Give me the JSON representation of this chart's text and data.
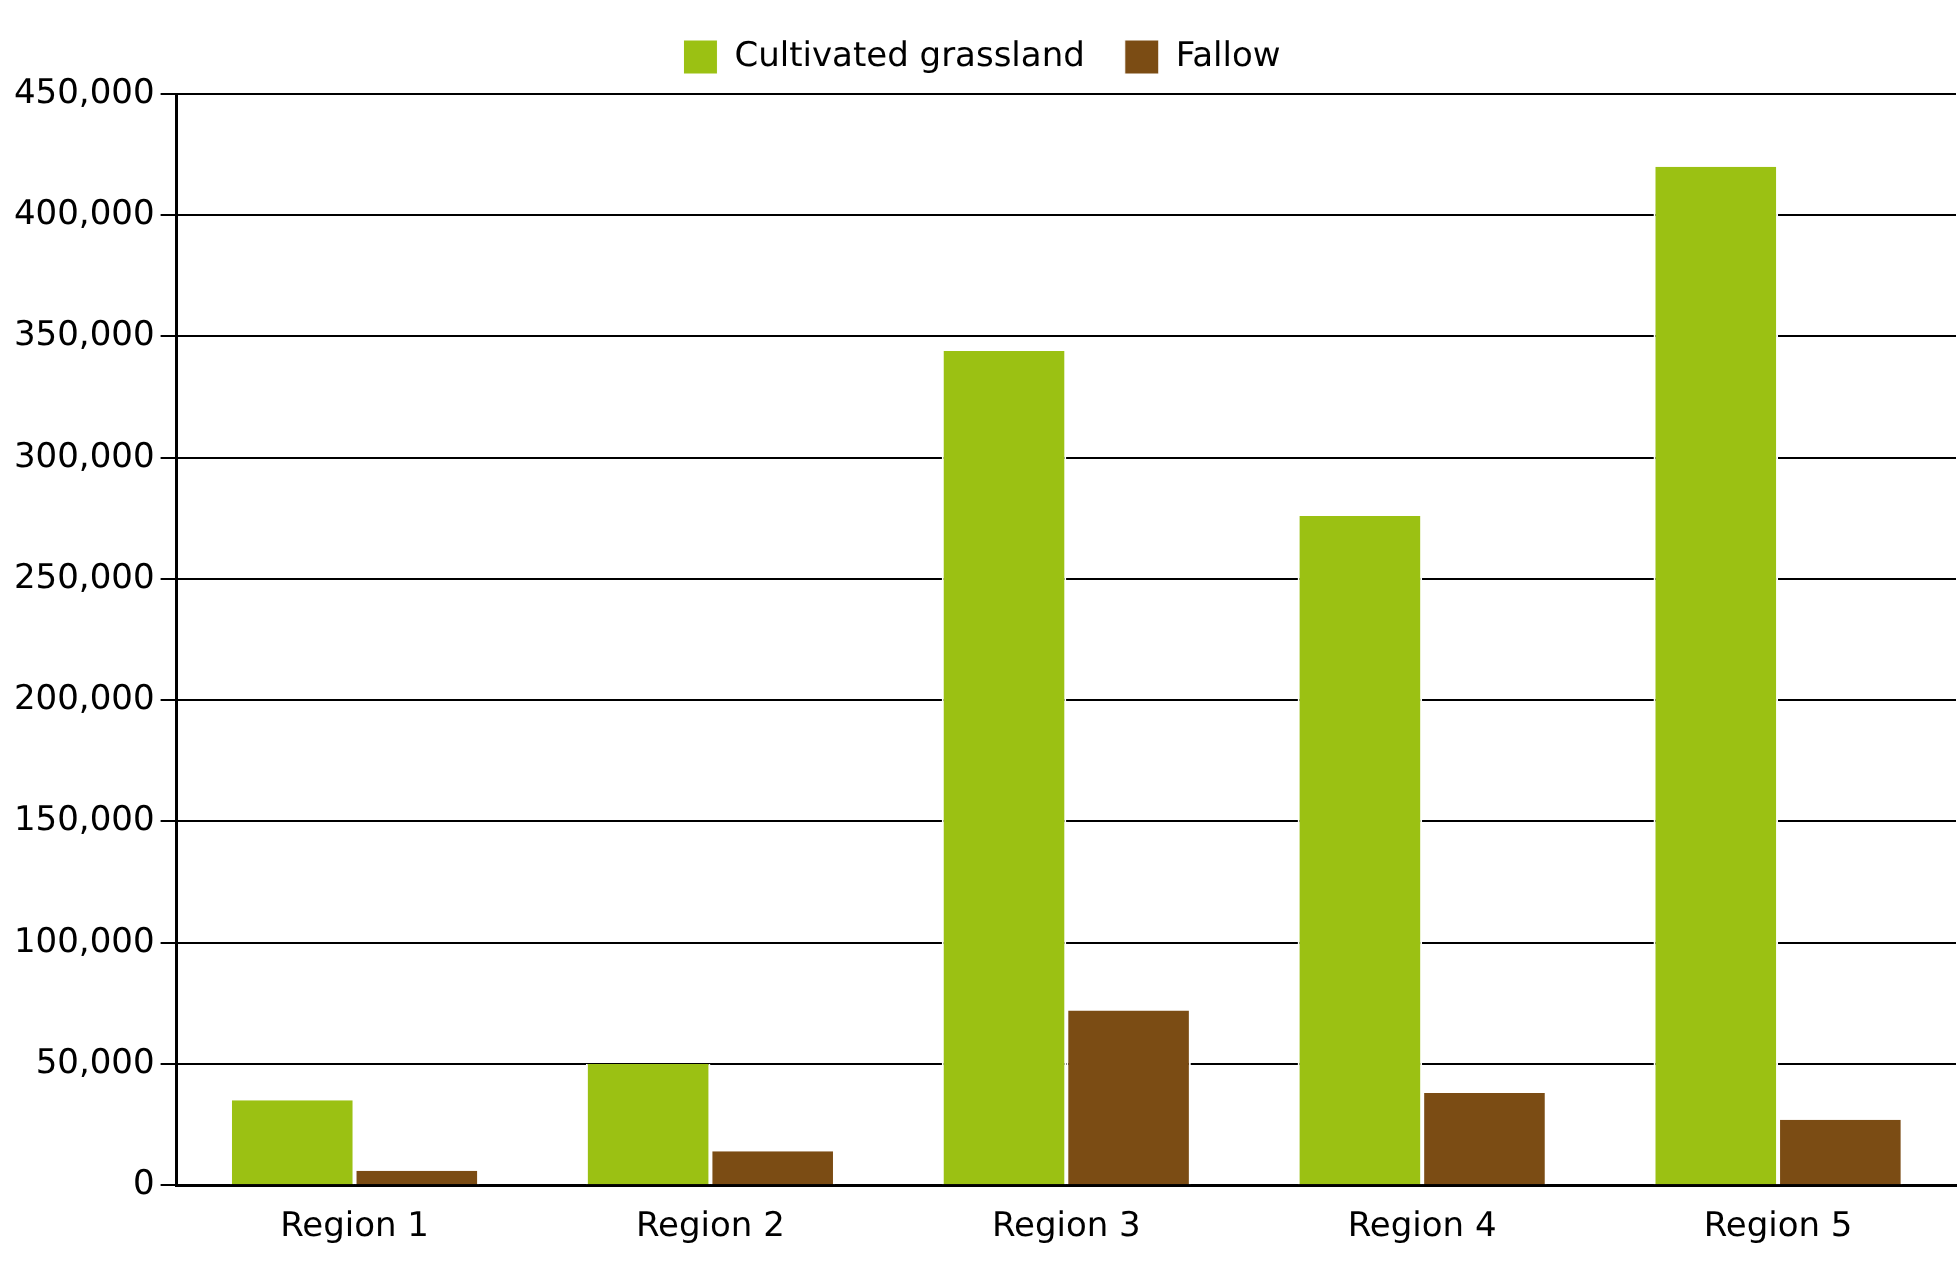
{
  "chart_data": {
    "type": "bar",
    "categories": [
      "Region 1",
      "Region 2",
      "Region 3",
      "Region 4",
      "Region 5"
    ],
    "series": [
      {
        "name": "Cultivated grassland",
        "color": "#9bc113",
        "values": [
          35000,
          50000,
          344000,
          276000,
          420000
        ]
      },
      {
        "name": "Fallow",
        "color": "#7b4c14",
        "values": [
          6000,
          14000,
          72000,
          38000,
          27000
        ]
      }
    ],
    "ylim": [
      0,
      450000
    ],
    "yticks": [
      0,
      {
        "value": 50000,
        "label": "50,000"
      },
      {
        "value": 100000,
        "label": "100,000"
      },
      {
        "value": 150000,
        "label": "150,000"
      },
      {
        "value": 200000,
        "label": "200,000"
      },
      {
        "value": 250000,
        "label": "250,000"
      },
      {
        "value": 300000,
        "label": "300,000"
      },
      {
        "value": 350000,
        "label": "350,000"
      },
      {
        "value": 400000,
        "label": "400,000"
      },
      {
        "value": 450000,
        "label": "450,000"
      }
    ],
    "grid": "y",
    "legend": "top"
  }
}
